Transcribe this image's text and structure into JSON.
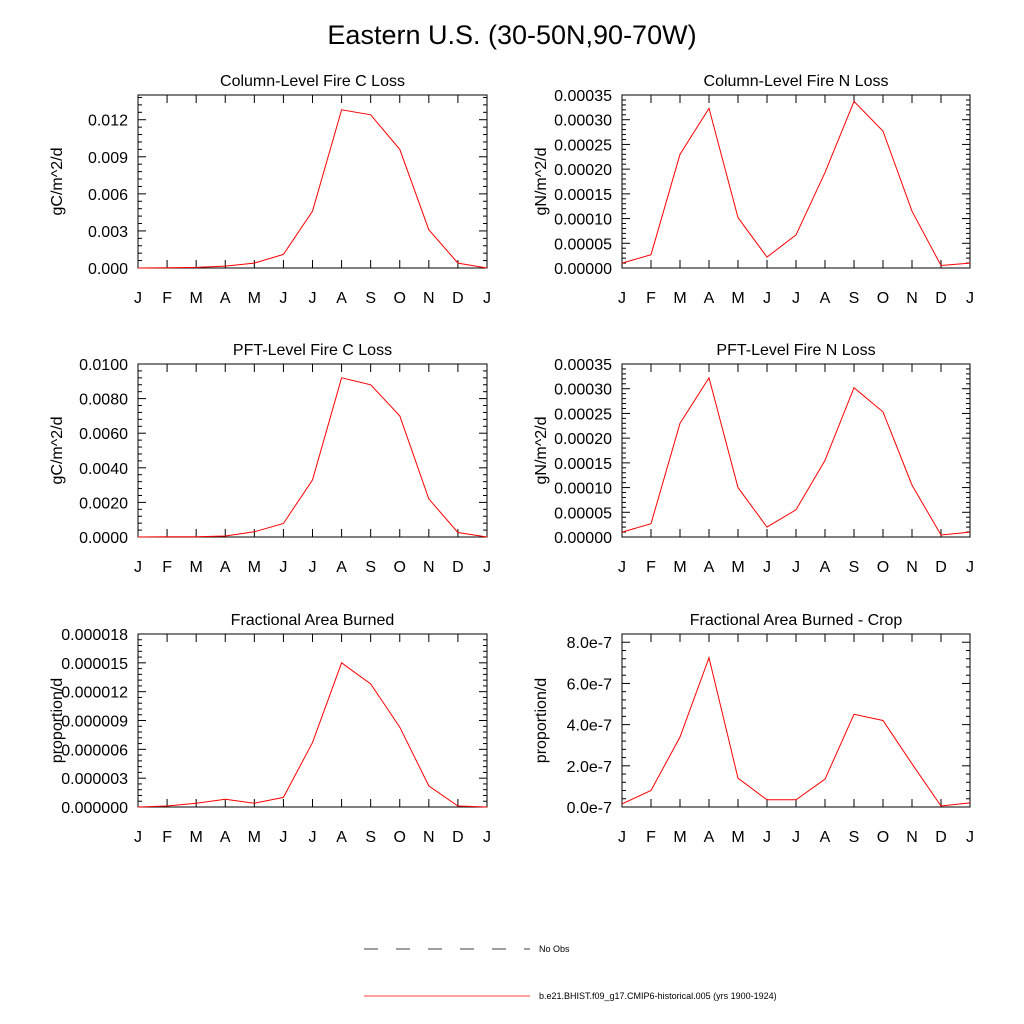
{
  "title": "Eastern U.S. (30-50N,90-70W)",
  "chart_data": [
    {
      "type": "line",
      "title": "Column-Level Fire C Loss",
      "ylabel": "gC/m^2/d",
      "categories": [
        "J",
        "F",
        "M",
        "A",
        "M",
        "J",
        "J",
        "A",
        "S",
        "O",
        "N",
        "D",
        "J"
      ],
      "ylim": [
        0,
        0.014
      ],
      "yticks": [
        0,
        0.003,
        0.006,
        0.009,
        0.012
      ],
      "ytick_labels": [
        "0.000",
        "0.003",
        "0.006",
        "0.009",
        "0.012"
      ],
      "series": [
        {
          "name": "b.e21.BHIST.f09_g17.CMIP6-historical.005 (yrs 1900-1924)",
          "color": "#ff0000",
          "values": [
            0.0,
            2e-05,
            5e-05,
            0.00015,
            0.0004,
            0.0011,
            0.0046,
            0.0128,
            0.0124,
            0.0096,
            0.0031,
            0.0004,
            0.0
          ]
        }
      ]
    },
    {
      "type": "line",
      "title": "Column-Level Fire N Loss",
      "ylabel": "gN/m^2/d",
      "categories": [
        "J",
        "F",
        "M",
        "A",
        "M",
        "J",
        "J",
        "A",
        "S",
        "O",
        "N",
        "D",
        "J"
      ],
      "ylim": [
        0,
        0.00035
      ],
      "yticks": [
        0,
        5e-05,
        0.0001,
        0.00015,
        0.0002,
        0.00025,
        0.0003,
        0.00035
      ],
      "ytick_labels": [
        "0.00000",
        "0.00005",
        "0.00010",
        "0.00015",
        "0.00020",
        "0.00025",
        "0.00030",
        "0.00035"
      ],
      "series": [
        {
          "name": "b.e21.BHIST.f09_g17.CMIP6-historical.005 (yrs 1900-1924)",
          "color": "#ff0000",
          "values": [
            1e-05,
            2.7e-05,
            0.00023,
            0.000323,
            0.000102,
            2.2e-05,
            6.7e-05,
            0.000193,
            0.000337,
            0.000277,
            0.000115,
            5e-06,
            1e-05
          ]
        }
      ]
    },
    {
      "type": "line",
      "title": "PFT-Level Fire C Loss",
      "ylabel": "gC/m^2/d",
      "categories": [
        "J",
        "F",
        "M",
        "A",
        "M",
        "J",
        "J",
        "A",
        "S",
        "O",
        "N",
        "D",
        "J"
      ],
      "ylim": [
        0,
        0.01
      ],
      "yticks": [
        0,
        0.002,
        0.004,
        0.006,
        0.008,
        0.01
      ],
      "ytick_labels": [
        "0.0000",
        "0.0020",
        "0.0040",
        "0.0060",
        "0.0080",
        "0.0100"
      ],
      "series": [
        {
          "name": "b.e21.BHIST.f09_g17.CMIP6-historical.005 (yrs 1900-1924)",
          "color": "#ff0000",
          "values": [
            0.0,
            1e-05,
            2e-05,
            6e-05,
            0.0003,
            0.00078,
            0.0033,
            0.0092,
            0.0088,
            0.007,
            0.0022,
            0.00026,
            0.0
          ]
        }
      ]
    },
    {
      "type": "line",
      "title": "PFT-Level Fire N Loss",
      "ylabel": "gN/m^2/d",
      "categories": [
        "J",
        "F",
        "M",
        "A",
        "M",
        "J",
        "J",
        "A",
        "S",
        "O",
        "N",
        "D",
        "J"
      ],
      "ylim": [
        0,
        0.00035
      ],
      "yticks": [
        0,
        5e-05,
        0.0001,
        0.00015,
        0.0002,
        0.00025,
        0.0003,
        0.00035
      ],
      "ytick_labels": [
        "0.00000",
        "0.00005",
        "0.00010",
        "0.00015",
        "0.00020",
        "0.00025",
        "0.00030",
        "0.00035"
      ],
      "series": [
        {
          "name": "b.e21.BHIST.f09_g17.CMIP6-historical.005 (yrs 1900-1924)",
          "color": "#ff0000",
          "values": [
            1e-05,
            2.7e-05,
            0.00023,
            0.000322,
            0.0001,
            2e-05,
            5.5e-05,
            0.000155,
            0.000302,
            0.000253,
            0.000105,
            4e-06,
            1e-05
          ]
        }
      ]
    },
    {
      "type": "line",
      "title": "Fractional Area Burned",
      "ylabel": "proportion/d",
      "categories": [
        "J",
        "F",
        "M",
        "A",
        "M",
        "J",
        "J",
        "A",
        "S",
        "O",
        "N",
        "D",
        "J"
      ],
      "ylim": [
        0,
        1.8e-05
      ],
      "yticks": [
        0,
        3e-06,
        6e-06,
        9e-06,
        1.2e-05,
        1.5e-05,
        1.8e-05
      ],
      "ytick_labels": [
        "0.000000",
        "0.000003",
        "0.000006",
        "0.000009",
        "0.000012",
        "0.000015",
        "0.000018"
      ],
      "series": [
        {
          "name": "b.e21.BHIST.f09_g17.CMIP6-historical.005 (yrs 1900-1924)",
          "color": "#ff0000",
          "values": [
            0.0,
            1e-07,
            4e-07,
            8e-07,
            4e-07,
            1e-06,
            6.7e-06,
            1.5e-05,
            1.28e-05,
            8.3e-06,
            2.2e-06,
            1e-07,
            0.0
          ]
        }
      ]
    },
    {
      "type": "line",
      "title": "Fractional Area Burned - Crop",
      "ylabel": "proportion/d",
      "categories": [
        "J",
        "F",
        "M",
        "A",
        "M",
        "J",
        "J",
        "A",
        "S",
        "O",
        "N",
        "D",
        "J"
      ],
      "ylim": [
        0,
        8.4e-07
      ],
      "yticks": [
        0,
        2e-07,
        4e-07,
        6e-07,
        8e-07
      ],
      "ytick_labels": [
        "0.0e-7",
        "2.0e-7",
        "4.0e-7",
        "6.0e-7",
        "8.0e-7"
      ],
      "series": [
        {
          "name": "b.e21.BHIST.f09_g17.CMIP6-historical.005 (yrs 1900-1924)",
          "color": "#ff0000",
          "values": [
            1.5e-08,
            8e-08,
            3.4e-07,
            7.25e-07,
            1.4e-07,
            3.5e-08,
            3.5e-08,
            1.35e-07,
            4.5e-07,
            4.2e-07,
            2.1e-07,
            5e-09,
            2e-08
          ]
        }
      ]
    }
  ],
  "legend": {
    "items": [
      {
        "label": "No Obs",
        "style": "dashed",
        "color": "#000000"
      },
      {
        "label": "b.e21.BHIST.f09_g17.CMIP6-historical.005 (yrs 1900-1924)",
        "style": "solid",
        "color": "#ff0000"
      }
    ]
  }
}
